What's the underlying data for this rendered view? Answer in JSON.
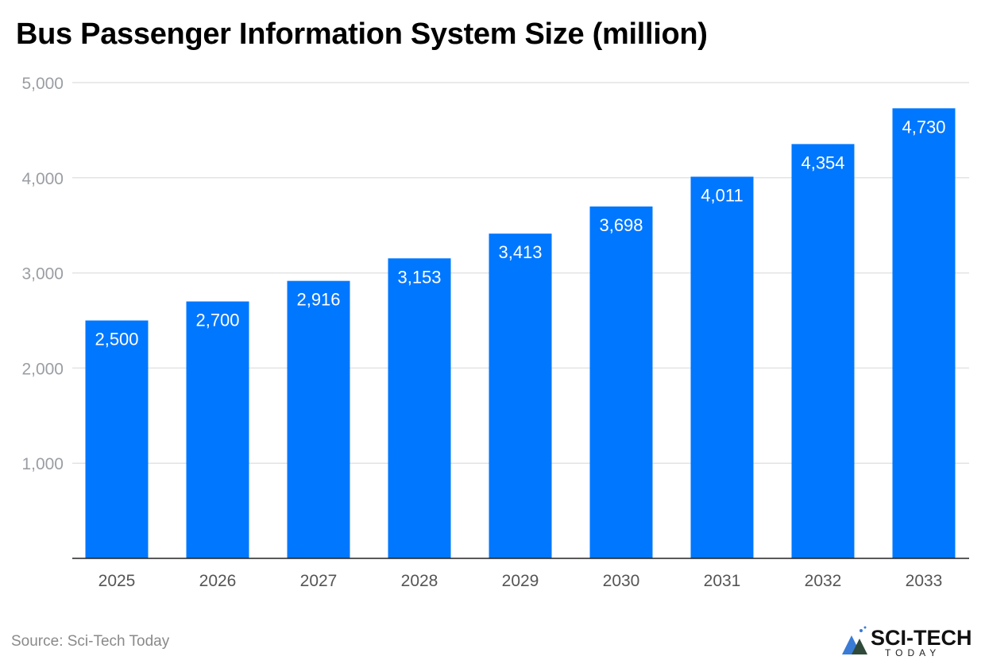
{
  "chart_data": {
    "type": "bar",
    "title": "Bus Passenger Information System Size (million)",
    "categories": [
      "2025",
      "2026",
      "2027",
      "2028",
      "2029",
      "2030",
      "2031",
      "2032",
      "2033"
    ],
    "values": [
      2500,
      2700,
      2916,
      3153,
      3413,
      3698,
      4011,
      4354,
      4730
    ],
    "data_labels": [
      "2,500",
      "2,700",
      "2,916",
      "3,153",
      "3,413",
      "3,698",
      "4,011",
      "4,354",
      "4,730"
    ],
    "ylim": [
      0,
      5000
    ],
    "yticks": [
      1000,
      2000,
      3000,
      4000,
      5000
    ],
    "ytick_labels": [
      "1,000",
      "2,000",
      "3,000",
      "4,000",
      "5,000"
    ],
    "xlabel": "",
    "ylabel": "",
    "grid": true,
    "bar_color": "#0077ff"
  },
  "source": "Source: Sci-Tech Today",
  "logo": {
    "text": "SCI-TECH",
    "subtext": "TODAY"
  }
}
